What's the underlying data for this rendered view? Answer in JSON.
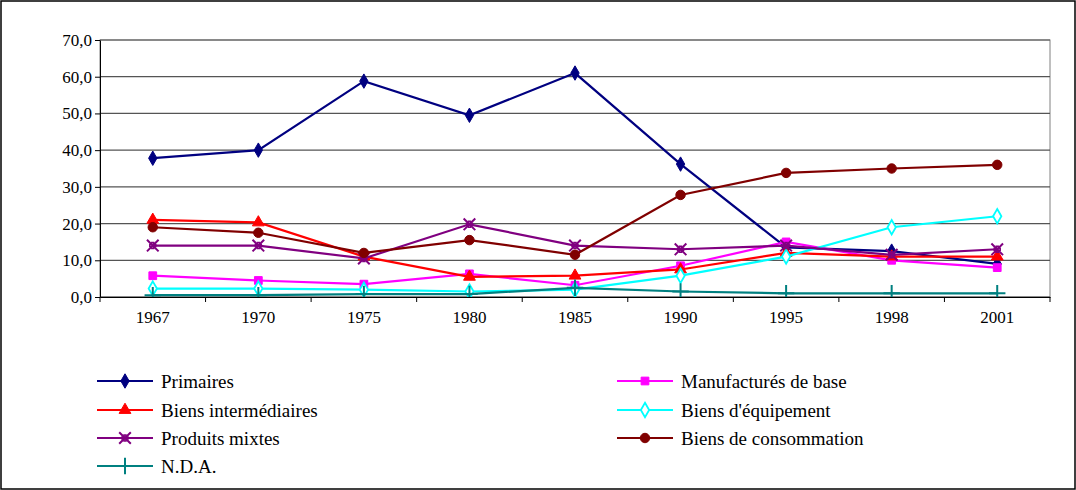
{
  "chart_data": {
    "type": "line",
    "categories": [
      "1967",
      "1970",
      "1975",
      "1980",
      "1985",
      "1990",
      "1995",
      "1998",
      "2001"
    ],
    "ylim": [
      0,
      70
    ],
    "yticks": [
      {
        "value": 0,
        "label": "0,0"
      },
      {
        "value": 10,
        "label": "10,0"
      },
      {
        "value": 20,
        "label": "20,0"
      },
      {
        "value": 30,
        "label": "30,0"
      },
      {
        "value": 40,
        "label": "40,0"
      },
      {
        "value": 50,
        "label": "50,0"
      },
      {
        "value": 60,
        "label": "60,0"
      },
      {
        "value": 70,
        "label": "70,0"
      }
    ],
    "grid": true,
    "legend": "bottom",
    "series": [
      {
        "name": "Primaires",
        "color": "#000080",
        "marker": "diamond",
        "values": [
          37.8,
          40.0,
          58.8,
          49.5,
          61.0,
          36.2,
          13.5,
          12.5,
          9.0
        ]
      },
      {
        "name": "Manufacturés de base",
        "color": "#ff00ff",
        "marker": "square",
        "values": [
          5.8,
          4.5,
          3.5,
          6.3,
          3.2,
          8.5,
          15.0,
          10.0,
          8.0
        ]
      },
      {
        "name": "Biens intermédiaires",
        "color": "#ff0000",
        "marker": "triangle",
        "values": [
          21.0,
          20.3,
          11.0,
          5.5,
          5.8,
          7.5,
          12.0,
          11.0,
          11.0
        ]
      },
      {
        "name": "Biens d'équipement",
        "color": "#00ffff",
        "marker": "diamond-open",
        "values": [
          2.3,
          2.3,
          2.0,
          1.5,
          2.0,
          5.8,
          11.0,
          19.0,
          22.0
        ]
      },
      {
        "name": "Produits mixtes",
        "color": "#800080",
        "marker": "star",
        "values": [
          14.0,
          14.0,
          10.5,
          19.8,
          14.0,
          13.0,
          14.0,
          11.5,
          13.0
        ]
      },
      {
        "name": "Biens de consommation",
        "color": "#800000",
        "marker": "circle",
        "values": [
          19.0,
          17.5,
          12.0,
          15.5,
          11.5,
          27.8,
          33.8,
          35.0,
          36.0
        ]
      },
      {
        "name": "N.D.A.",
        "color": "#008080",
        "marker": "plus",
        "values": [
          0.5,
          0.5,
          0.8,
          0.8,
          2.5,
          1.5,
          1.0,
          1.0,
          1.0
        ]
      }
    ]
  }
}
